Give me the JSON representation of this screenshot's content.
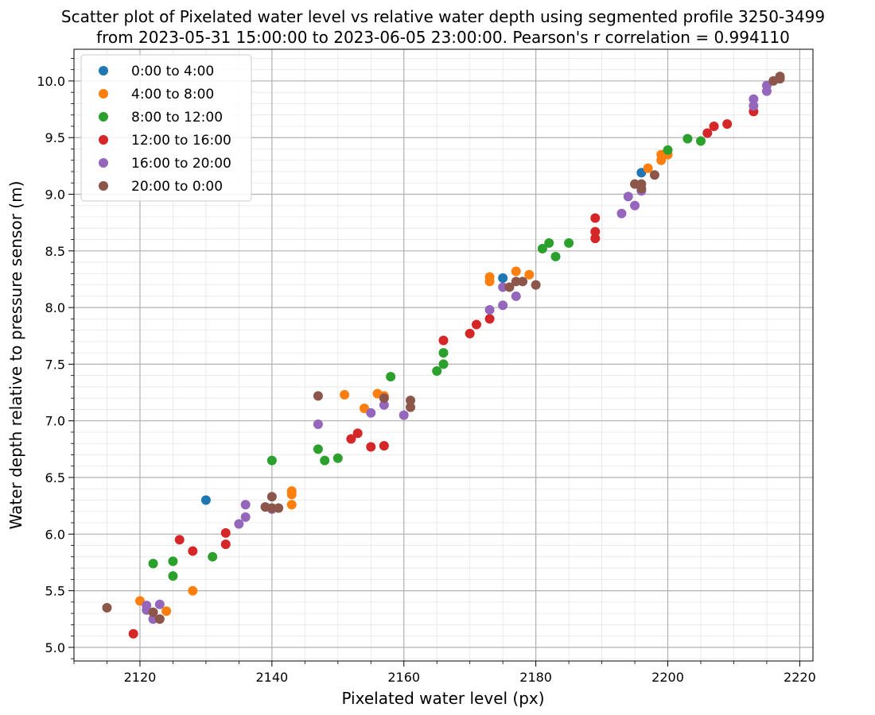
{
  "chart_data": {
    "type": "scatter",
    "title_line1": "Scatter plot of Pixelated water level vs relative water depth using segmented profile 3250-3499",
    "title_line2": "from 2023-05-31 15:00:00 to 2023-06-05 23:00:00. Pearson's r correlation = 0.994110",
    "xlabel": "Pixelated water level (px)",
    "ylabel": "Water depth relative to pressure sensor (m)",
    "xlim": [
      2110,
      2222
    ],
    "ylim": [
      4.88,
      10.28
    ],
    "xticks": [
      2120,
      2140,
      2160,
      2180,
      2200,
      2220
    ],
    "yticks": [
      5.0,
      5.5,
      6.0,
      6.5,
      7.0,
      7.5,
      8.0,
      8.5,
      9.0,
      9.5,
      10.0
    ],
    "xtick_labels": [
      "2120",
      "2140",
      "2160",
      "2180",
      "2200",
      "2220"
    ],
    "ytick_labels": [
      "5.0",
      "5.5",
      "6.0",
      "6.5",
      "7.0",
      "7.5",
      "8.0",
      "8.5",
      "9.0",
      "9.5",
      "10.0"
    ],
    "grid": true,
    "legend_position": "top-left",
    "series": [
      {
        "name": "0:00 to 4:00",
        "color": "#1f77b4",
        "points": [
          [
            2130,
            6.3
          ],
          [
            2175,
            8.26
          ],
          [
            2196,
            9.19
          ]
        ]
      },
      {
        "name": "4:00 to 8:00",
        "color": "#ff7f0e",
        "points": [
          [
            2120,
            5.41
          ],
          [
            2124,
            5.32
          ],
          [
            2128,
            5.5
          ],
          [
            2143,
            6.38
          ],
          [
            2143,
            6.35
          ],
          [
            2143,
            6.26
          ],
          [
            2151,
            7.23
          ],
          [
            2154,
            7.11
          ],
          [
            2156,
            7.24
          ],
          [
            2157,
            7.22
          ],
          [
            2173,
            8.27
          ],
          [
            2173,
            8.23
          ],
          [
            2177,
            8.32
          ],
          [
            2179,
            8.29
          ],
          [
            2197,
            9.23
          ],
          [
            2199,
            9.35
          ],
          [
            2199,
            9.3
          ],
          [
            2200,
            9.35
          ]
        ]
      },
      {
        "name": "8:00 to 12:00",
        "color": "#2ca02c",
        "points": [
          [
            2122,
            5.74
          ],
          [
            2125,
            5.76
          ],
          [
            2125,
            5.63
          ],
          [
            2131,
            5.8
          ],
          [
            2140,
            6.65
          ],
          [
            2147,
            6.75
          ],
          [
            2148,
            6.65
          ],
          [
            2150,
            6.67
          ],
          [
            2158,
            7.39
          ],
          [
            2165,
            7.44
          ],
          [
            2166,
            7.6
          ],
          [
            2166,
            7.5
          ],
          [
            2181,
            8.52
          ],
          [
            2182,
            8.57
          ],
          [
            2183,
            8.45
          ],
          [
            2185,
            8.57
          ],
          [
            2200,
            9.39
          ],
          [
            2203,
            9.49
          ],
          [
            2205,
            9.47
          ]
        ]
      },
      {
        "name": "12:00 to 16:00",
        "color": "#d62728",
        "points": [
          [
            2119,
            5.12
          ],
          [
            2126,
            5.95
          ],
          [
            2128,
            5.85
          ],
          [
            2133,
            6.01
          ],
          [
            2133,
            5.91
          ],
          [
            2152,
            6.84
          ],
          [
            2153,
            6.89
          ],
          [
            2155,
            6.77
          ],
          [
            2157,
            6.78
          ],
          [
            2166,
            7.71
          ],
          [
            2170,
            7.77
          ],
          [
            2171,
            7.85
          ],
          [
            2173,
            7.9
          ],
          [
            2189,
            8.79
          ],
          [
            2189,
            8.67
          ],
          [
            2189,
            8.61
          ],
          [
            2206,
            9.54
          ],
          [
            2207,
            9.6
          ],
          [
            2209,
            9.62
          ],
          [
            2213,
            9.73
          ]
        ]
      },
      {
        "name": "16:00 to 20:00",
        "color": "#9467bd",
        "points": [
          [
            2121,
            5.37
          ],
          [
            2121,
            5.33
          ],
          [
            2122,
            5.25
          ],
          [
            2123,
            5.38
          ],
          [
            2135,
            6.09
          ],
          [
            2136,
            6.26
          ],
          [
            2136,
            6.15
          ],
          [
            2140,
            6.22
          ],
          [
            2147,
            6.97
          ],
          [
            2155,
            7.07
          ],
          [
            2157,
            7.14
          ],
          [
            2160,
            7.05
          ],
          [
            2173,
            7.98
          ],
          [
            2175,
            8.02
          ],
          [
            2175,
            8.18
          ],
          [
            2177,
            8.1
          ],
          [
            2193,
            8.83
          ],
          [
            2194,
            8.98
          ],
          [
            2195,
            8.9
          ],
          [
            2196,
            9.03
          ],
          [
            2213,
            9.84
          ],
          [
            2213,
            9.78
          ],
          [
            2215,
            9.96
          ],
          [
            2215,
            9.91
          ]
        ]
      },
      {
        "name": "20:00 to 0:00",
        "color": "#8c564b",
        "points": [
          [
            2115,
            5.35
          ],
          [
            2122,
            5.31
          ],
          [
            2123,
            5.25
          ],
          [
            2139,
            6.24
          ],
          [
            2140,
            6.33
          ],
          [
            2140,
            6.23
          ],
          [
            2141,
            6.23
          ],
          [
            2147,
            7.22
          ],
          [
            2157,
            7.2
          ],
          [
            2161,
            7.18
          ],
          [
            2161,
            7.12
          ],
          [
            2176,
            8.18
          ],
          [
            2177,
            8.23
          ],
          [
            2178,
            8.23
          ],
          [
            2180,
            8.2
          ],
          [
            2195,
            9.09
          ],
          [
            2196,
            9.09
          ],
          [
            2196,
            9.05
          ],
          [
            2198,
            9.17
          ],
          [
            2216,
            10.0
          ],
          [
            2217,
            10.04
          ],
          [
            2217,
            10.02
          ]
        ]
      }
    ]
  }
}
